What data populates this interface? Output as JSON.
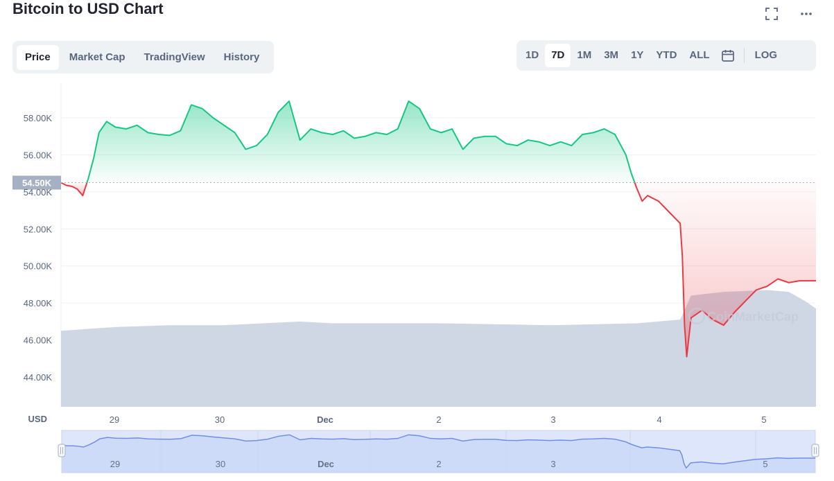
{
  "title": "Bitcoin to USD Chart",
  "top_icons": [
    "fullscreen-icon",
    "more-icon"
  ],
  "tabs": [
    {
      "label": "Price",
      "active": true
    },
    {
      "label": "Market Cap",
      "active": false
    },
    {
      "label": "TradingView",
      "active": false
    },
    {
      "label": "History",
      "active": false
    }
  ],
  "ranges": [
    {
      "label": "1D",
      "active": false
    },
    {
      "label": "7D",
      "active": true
    },
    {
      "label": "1M",
      "active": false
    },
    {
      "label": "3M",
      "active": false
    },
    {
      "label": "1Y",
      "active": false
    },
    {
      "label": "YTD",
      "active": false
    },
    {
      "label": "ALL",
      "active": false
    }
  ],
  "log_label": "LOG",
  "calendar_icon": "calendar-icon",
  "colors": {
    "up": "#16c784",
    "down": "#ea3943",
    "volume": "#cfd6e4",
    "navigator": "#dde6fb",
    "navigator_line": "#6f8ee6",
    "badge": "#a6b0c3"
  },
  "chart_data": {
    "type": "line",
    "currency_label": "USD",
    "baseline_value": 54500,
    "baseline_label": "54.50K",
    "watermark": "CoinMarketCap",
    "y_ticks": [
      "58.00K",
      "56.00K",
      "54.00K",
      "52.00K",
      "50.00K",
      "48.00K",
      "46.00K",
      "44.00K"
    ],
    "y_tick_values": [
      58000,
      56000,
      54000,
      52000,
      50000,
      48000,
      46000,
      44000
    ],
    "ylim": [
      43000,
      59800
    ],
    "xlim": [
      28.5,
      5.45
    ],
    "x_ticks": [
      {
        "label": "29",
        "x": 29.0,
        "bold": false
      },
      {
        "label": "30",
        "x": 30.0,
        "bold": false
      },
      {
        "label": "Dec",
        "x": 31.0,
        "bold": true
      },
      {
        "label": "2",
        "x": 32.0,
        "bold": false
      },
      {
        "label": "3",
        "x": 33.0,
        "bold": false
      },
      {
        "label": "4",
        "x": 34.0,
        "bold": false
      },
      {
        "label": "5",
        "x": 35.0,
        "bold": false
      }
    ],
    "price_series": [
      [
        28.5,
        54500
      ],
      [
        28.55,
        54350
      ],
      [
        28.6,
        54300
      ],
      [
        28.65,
        54150
      ],
      [
        28.7,
        53800
      ],
      [
        28.75,
        54700
      ],
      [
        28.8,
        55800
      ],
      [
        28.85,
        57200
      ],
      [
        28.92,
        57800
      ],
      [
        29.0,
        57500
      ],
      [
        29.1,
        57400
      ],
      [
        29.2,
        57600
      ],
      [
        29.3,
        57200
      ],
      [
        29.4,
        57100
      ],
      [
        29.5,
        57050
      ],
      [
        29.6,
        57300
      ],
      [
        29.7,
        58700
      ],
      [
        29.8,
        58500
      ],
      [
        29.9,
        58000
      ],
      [
        30.0,
        57600
      ],
      [
        30.1,
        57200
      ],
      [
        30.2,
        56300
      ],
      [
        30.3,
        56500
      ],
      [
        30.4,
        57100
      ],
      [
        30.5,
        58300
      ],
      [
        30.6,
        58900
      ],
      [
        30.7,
        56800
      ],
      [
        30.8,
        57400
      ],
      [
        30.9,
        57200
      ],
      [
        31.0,
        57100
      ],
      [
        31.1,
        57300
      ],
      [
        31.2,
        56900
      ],
      [
        31.3,
        57000
      ],
      [
        31.4,
        57200
      ],
      [
        31.5,
        57100
      ],
      [
        31.6,
        57400
      ],
      [
        31.7,
        58900
      ],
      [
        31.8,
        58500
      ],
      [
        31.9,
        57400
      ],
      [
        32.0,
        57200
      ],
      [
        32.1,
        57400
      ],
      [
        32.2,
        56300
      ],
      [
        32.3,
        56900
      ],
      [
        32.4,
        57000
      ],
      [
        32.5,
        57000
      ],
      [
        32.6,
        56600
      ],
      [
        32.7,
        56500
      ],
      [
        32.8,
        56800
      ],
      [
        32.9,
        56700
      ],
      [
        33.0,
        56500
      ],
      [
        33.1,
        56700
      ],
      [
        33.2,
        56500
      ],
      [
        33.3,
        57100
      ],
      [
        33.4,
        57200
      ],
      [
        33.5,
        57400
      ],
      [
        33.6,
        57100
      ],
      [
        33.7,
        56000
      ],
      [
        33.75,
        55000
      ],
      [
        33.8,
        54200
      ],
      [
        33.85,
        53500
      ],
      [
        33.9,
        53800
      ],
      [
        34.0,
        53500
      ],
      [
        34.1,
        52900
      ],
      [
        34.2,
        52300
      ],
      [
        34.22,
        50500
      ],
      [
        34.24,
        46800
      ],
      [
        34.26,
        45100
      ],
      [
        34.3,
        47200
      ],
      [
        34.4,
        47600
      ],
      [
        34.5,
        47100
      ],
      [
        34.6,
        46800
      ],
      [
        34.7,
        47500
      ],
      [
        34.8,
        48100
      ],
      [
        34.9,
        48700
      ],
      [
        35.0,
        48900
      ],
      [
        35.1,
        49300
      ],
      [
        35.2,
        49100
      ],
      [
        35.3,
        49200
      ],
      [
        35.45,
        49200
      ]
    ],
    "volume_series": [
      [
        28.5,
        46500
      ],
      [
        29.0,
        46700
      ],
      [
        29.5,
        46800
      ],
      [
        30.0,
        46800
      ],
      [
        30.7,
        47000
      ],
      [
        31.0,
        46900
      ],
      [
        32.0,
        46900
      ],
      [
        33.0,
        46800
      ],
      [
        33.8,
        46900
      ],
      [
        34.2,
        47100
      ],
      [
        34.3,
        48400
      ],
      [
        34.6,
        48600
      ],
      [
        35.0,
        48700
      ],
      [
        35.2,
        48600
      ],
      [
        35.35,
        48100
      ],
      [
        35.45,
        47700
      ]
    ],
    "navigator": {
      "x_ticks": [
        "29",
        "30",
        "Dec",
        "2",
        "3",
        "5"
      ]
    }
  }
}
